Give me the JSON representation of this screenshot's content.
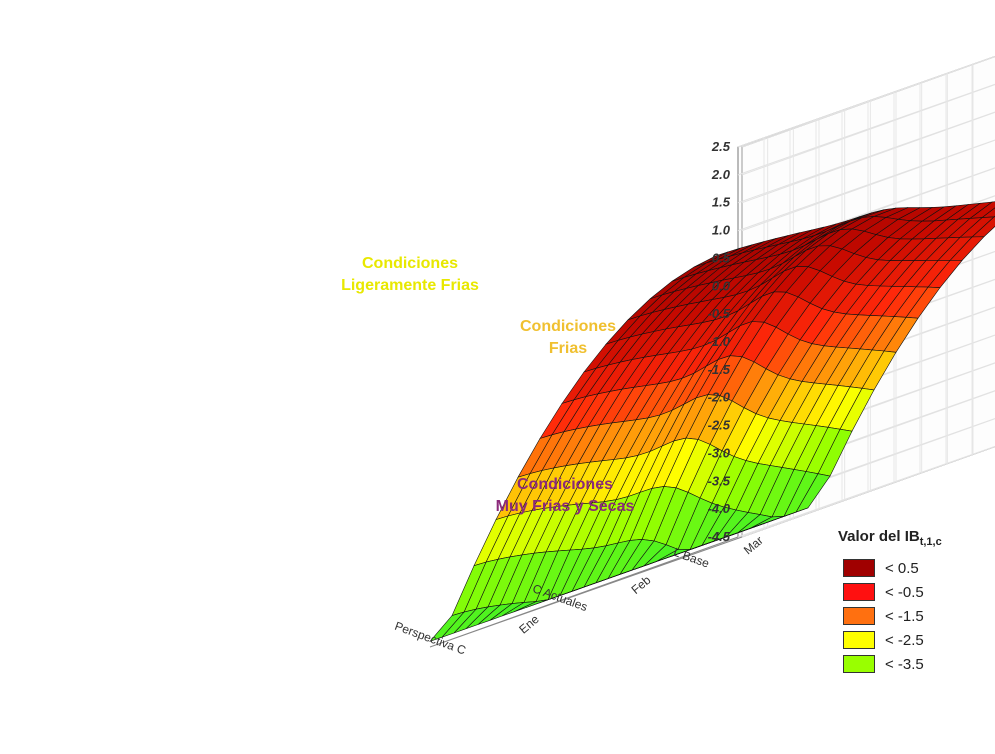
{
  "chart_data": {
    "type": "surface3d",
    "title": "",
    "x_categories": [
      "Ene",
      "Feb",
      "Mar"
    ],
    "y_categories": [
      "L Base",
      "C Actuales",
      "Perspectiva C"
    ],
    "z_ticks": [
      "2.5",
      "2.0",
      "1.5",
      "1.0",
      "0.5",
      "0.0",
      "-0.5",
      "-1.0",
      "-1.5",
      "-2.0",
      "-2.5",
      "-3.0",
      "-3.5",
      "-4.0",
      "-4.5"
    ],
    "zlim": [
      -4.5,
      2.5
    ],
    "annotations": [
      {
        "lines": [
          "Condiciones",
          "Ligeramente Frias"
        ],
        "color": "#e8e800"
      },
      {
        "lines": [
          "Condiciones",
          "Frias"
        ],
        "color": "#f0c030"
      },
      {
        "lines": [
          "Condiciones",
          "Muy Frias y Secas"
        ],
        "color": "#8b2a7a"
      }
    ],
    "legend": {
      "title_main": "Valor del IB",
      "title_sub": "t,1,c",
      "placement": "right",
      "entries": [
        {
          "label": "< 0.5",
          "color": "#a00000"
        },
        {
          "label": "< -0.5",
          "color": "#ff1010"
        },
        {
          "label": "< -1.5",
          "color": "#ff7010"
        },
        {
          "label": "< -2.5",
          "color": "#ffff00"
        },
        {
          "label": "< -3.5",
          "color": "#99ff00"
        }
      ]
    }
  }
}
